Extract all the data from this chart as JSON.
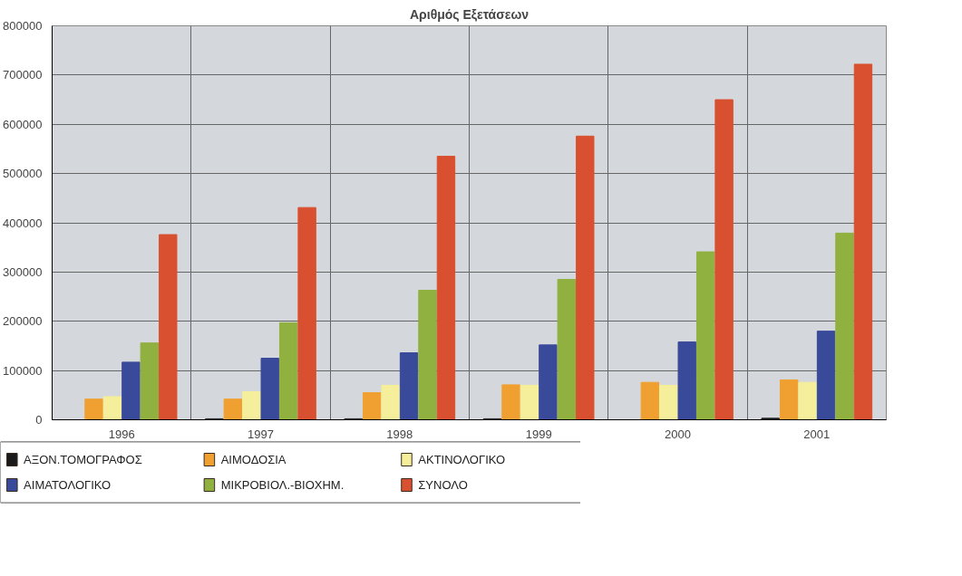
{
  "chart_data": {
    "type": "bar",
    "title": "Αριθμός Εξετάσεων",
    "categories": [
      "1996",
      "1997",
      "1998",
      "1999",
      "2000",
      "2001"
    ],
    "ylim": [
      0,
      800000
    ],
    "yticks": [
      0,
      100000,
      200000,
      300000,
      400000,
      500000,
      600000,
      700000,
      800000
    ],
    "grid": true,
    "legend": "bottom",
    "series": [
      {
        "name": "ΑΞΟΝ.ΤΟΜΟΓΡΑΦΟΣ",
        "color": "#1a1a1a",
        "values": [
          0,
          2000,
          2000,
          2000,
          0,
          3000
        ]
      },
      {
        "name": "ΑΙΜΟΔΟΣΙΑ",
        "color": "#f0a030",
        "values": [
          42000,
          42000,
          55000,
          71000,
          76000,
          81000
        ]
      },
      {
        "name": "ΑΚΤΙΝΟΛΟΓΙΚΟ",
        "color": "#f5ee9a",
        "values": [
          47000,
          57000,
          70000,
          70000,
          70000,
          76000
        ]
      },
      {
        "name": "ΑΙΜΑΤΟΛΟΓΙΚΟ",
        "color": "#3a4a9a",
        "values": [
          117000,
          125000,
          136000,
          152000,
          158000,
          180000
        ]
      },
      {
        "name": "ΜΙΚΡΟΒΙΟΛ.-ΒΙΟΧΗΜ.",
        "color": "#90b040",
        "values": [
          156000,
          197000,
          263000,
          285000,
          341000,
          379000
        ]
      },
      {
        "name": "ΣΥΝΟΛΟ",
        "color": "#d85030",
        "values": [
          376000,
          431000,
          535000,
          576000,
          650000,
          722000
        ]
      }
    ]
  }
}
